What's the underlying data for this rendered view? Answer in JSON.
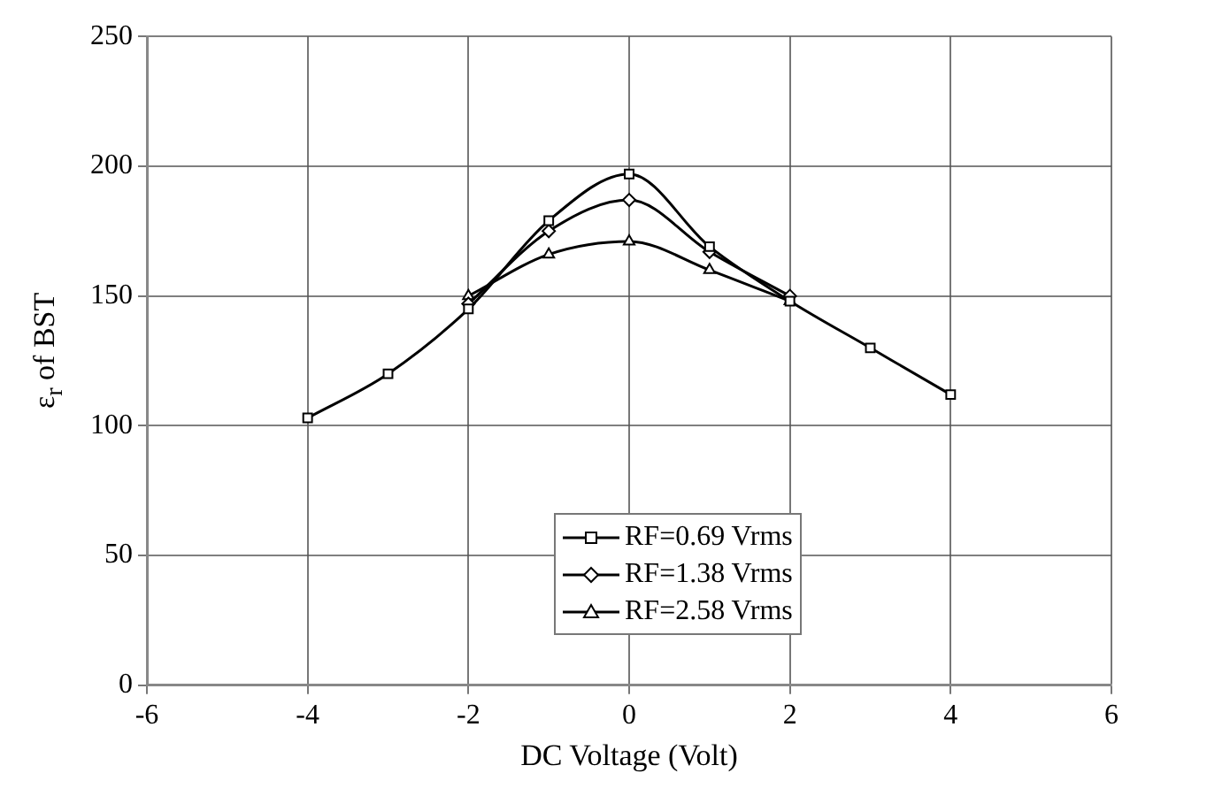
{
  "chart_data": {
    "type": "line",
    "xlabel": "DC Voltage (Volt)",
    "ylabel": "ε$_{r}$ of BST",
    "xlim": [
      -6,
      6
    ],
    "xticks": [
      -6,
      -4,
      -2,
      0,
      2,
      4,
      6
    ],
    "ylim": [
      0,
      250
    ],
    "yticks": [
      0,
      50,
      100,
      150,
      200,
      250
    ],
    "grid": true,
    "legend": "bottom",
    "line_style": "solid",
    "series": [
      {
        "name": "RF=0.69 Vrms",
        "color": "#000000",
        "marker": "square",
        "x": [
          -4,
          -3,
          -2,
          -1,
          0,
          1,
          2,
          3,
          4
        ],
        "values": [
          103,
          120,
          145,
          179,
          197,
          169,
          148,
          130,
          112
        ]
      },
      {
        "name": "RF=1.38 Vrms",
        "color": "#000000",
        "marker": "diamond",
        "x": [
          -2,
          -1,
          0,
          1,
          2
        ],
        "values": [
          147,
          175,
          187,
          167,
          150
        ]
      },
      {
        "name": "RF=2.58 Vrms",
        "color": "#000000",
        "marker": "triangle",
        "x": [
          -2,
          -1,
          0,
          1,
          2
        ],
        "values": [
          150,
          166,
          171,
          160,
          148
        ]
      }
    ]
  }
}
